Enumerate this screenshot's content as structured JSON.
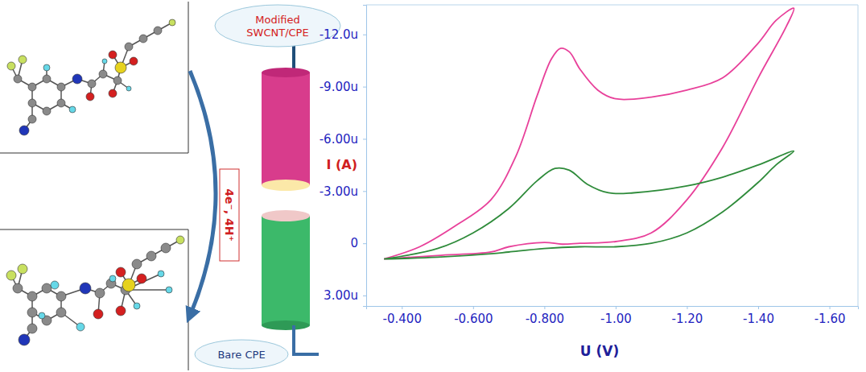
{
  "chart_data": {
    "type": "line",
    "x_label": "U (V)",
    "y_label": "I (A)",
    "xlim": [
      -0.3,
      -1.68
    ],
    "ylim": [
      3.6,
      -13.7
    ],
    "xticks": [
      {
        "value": -0.4,
        "label": "-0.400"
      },
      {
        "value": -0.6,
        "label": "-0.600"
      },
      {
        "value": -0.8,
        "label": "-0.800"
      },
      {
        "value": -1.0,
        "label": "-1.00"
      },
      {
        "value": -1.2,
        "label": "-1.20"
      },
      {
        "value": -1.4,
        "label": "-1.40"
      },
      {
        "value": -1.6,
        "label": "-1.60"
      }
    ],
    "yticks": [
      {
        "value": -12,
        "label": "-12.0u"
      },
      {
        "value": -9,
        "label": "-9.00u"
      },
      {
        "value": -6,
        "label": "-6.00u"
      },
      {
        "value": -3,
        "label": "-3.00u"
      },
      0,
      {
        "value": 3,
        "label": "3.00u"
      }
    ],
    "grid": false,
    "series": [
      {
        "color": "#e8409a",
        "x": [
          -0.35,
          -0.45,
          -0.55,
          -0.65,
          -0.72,
          -0.78,
          -0.82,
          -0.845,
          -0.87,
          -0.9,
          -0.95,
          -1.0,
          -1.1,
          -1.2,
          -1.3,
          -1.4,
          -1.45,
          -1.5,
          -1.48,
          -1.4,
          -1.3,
          -1.2,
          -1.1,
          -1.0,
          -0.9,
          -0.85,
          -0.8,
          -0.7,
          -0.65,
          -0.5,
          -0.35
        ],
        "values": [
          0.9,
          0.2,
          -1.0,
          -2.5,
          -5.0,
          -8.5,
          -10.6,
          -11.2,
          -11.0,
          -10.0,
          -8.8,
          -8.3,
          -8.4,
          -8.8,
          -9.5,
          -11.5,
          -12.8,
          -13.5,
          -12.5,
          -9.5,
          -5.5,
          -2.5,
          -0.6,
          -0.1,
          0.0,
          0.05,
          -0.05,
          0.2,
          0.5,
          0.7,
          0.9
        ]
      },
      {
        "color": "#2e8b3a",
        "x": [
          -0.35,
          -0.5,
          -0.6,
          -0.7,
          -0.78,
          -0.83,
          -0.87,
          -0.92,
          -0.98,
          -1.05,
          -1.2,
          -1.3,
          -1.4,
          -1.5,
          -1.45,
          -1.4,
          -1.3,
          -1.2,
          -1.1,
          -1.0,
          -0.9,
          -0.8,
          -0.7,
          -0.65,
          -0.5,
          -0.35
        ],
        "values": [
          0.9,
          0.3,
          -0.6,
          -2.0,
          -3.6,
          -4.3,
          -4.2,
          -3.4,
          -2.9,
          -2.9,
          -3.3,
          -3.8,
          -4.5,
          -5.3,
          -4.5,
          -3.5,
          -1.8,
          -0.6,
          0.0,
          0.2,
          0.2,
          0.3,
          0.5,
          0.6,
          0.8,
          0.9
        ]
      }
    ]
  },
  "diagram": {
    "electrodes": [
      {
        "label": [
          "Modified",
          "SWCNT/CPE"
        ]
      },
      {
        "label": [
          "Bare CPE"
        ]
      }
    ],
    "reaction_label": "4e⁻, 4H⁺"
  }
}
